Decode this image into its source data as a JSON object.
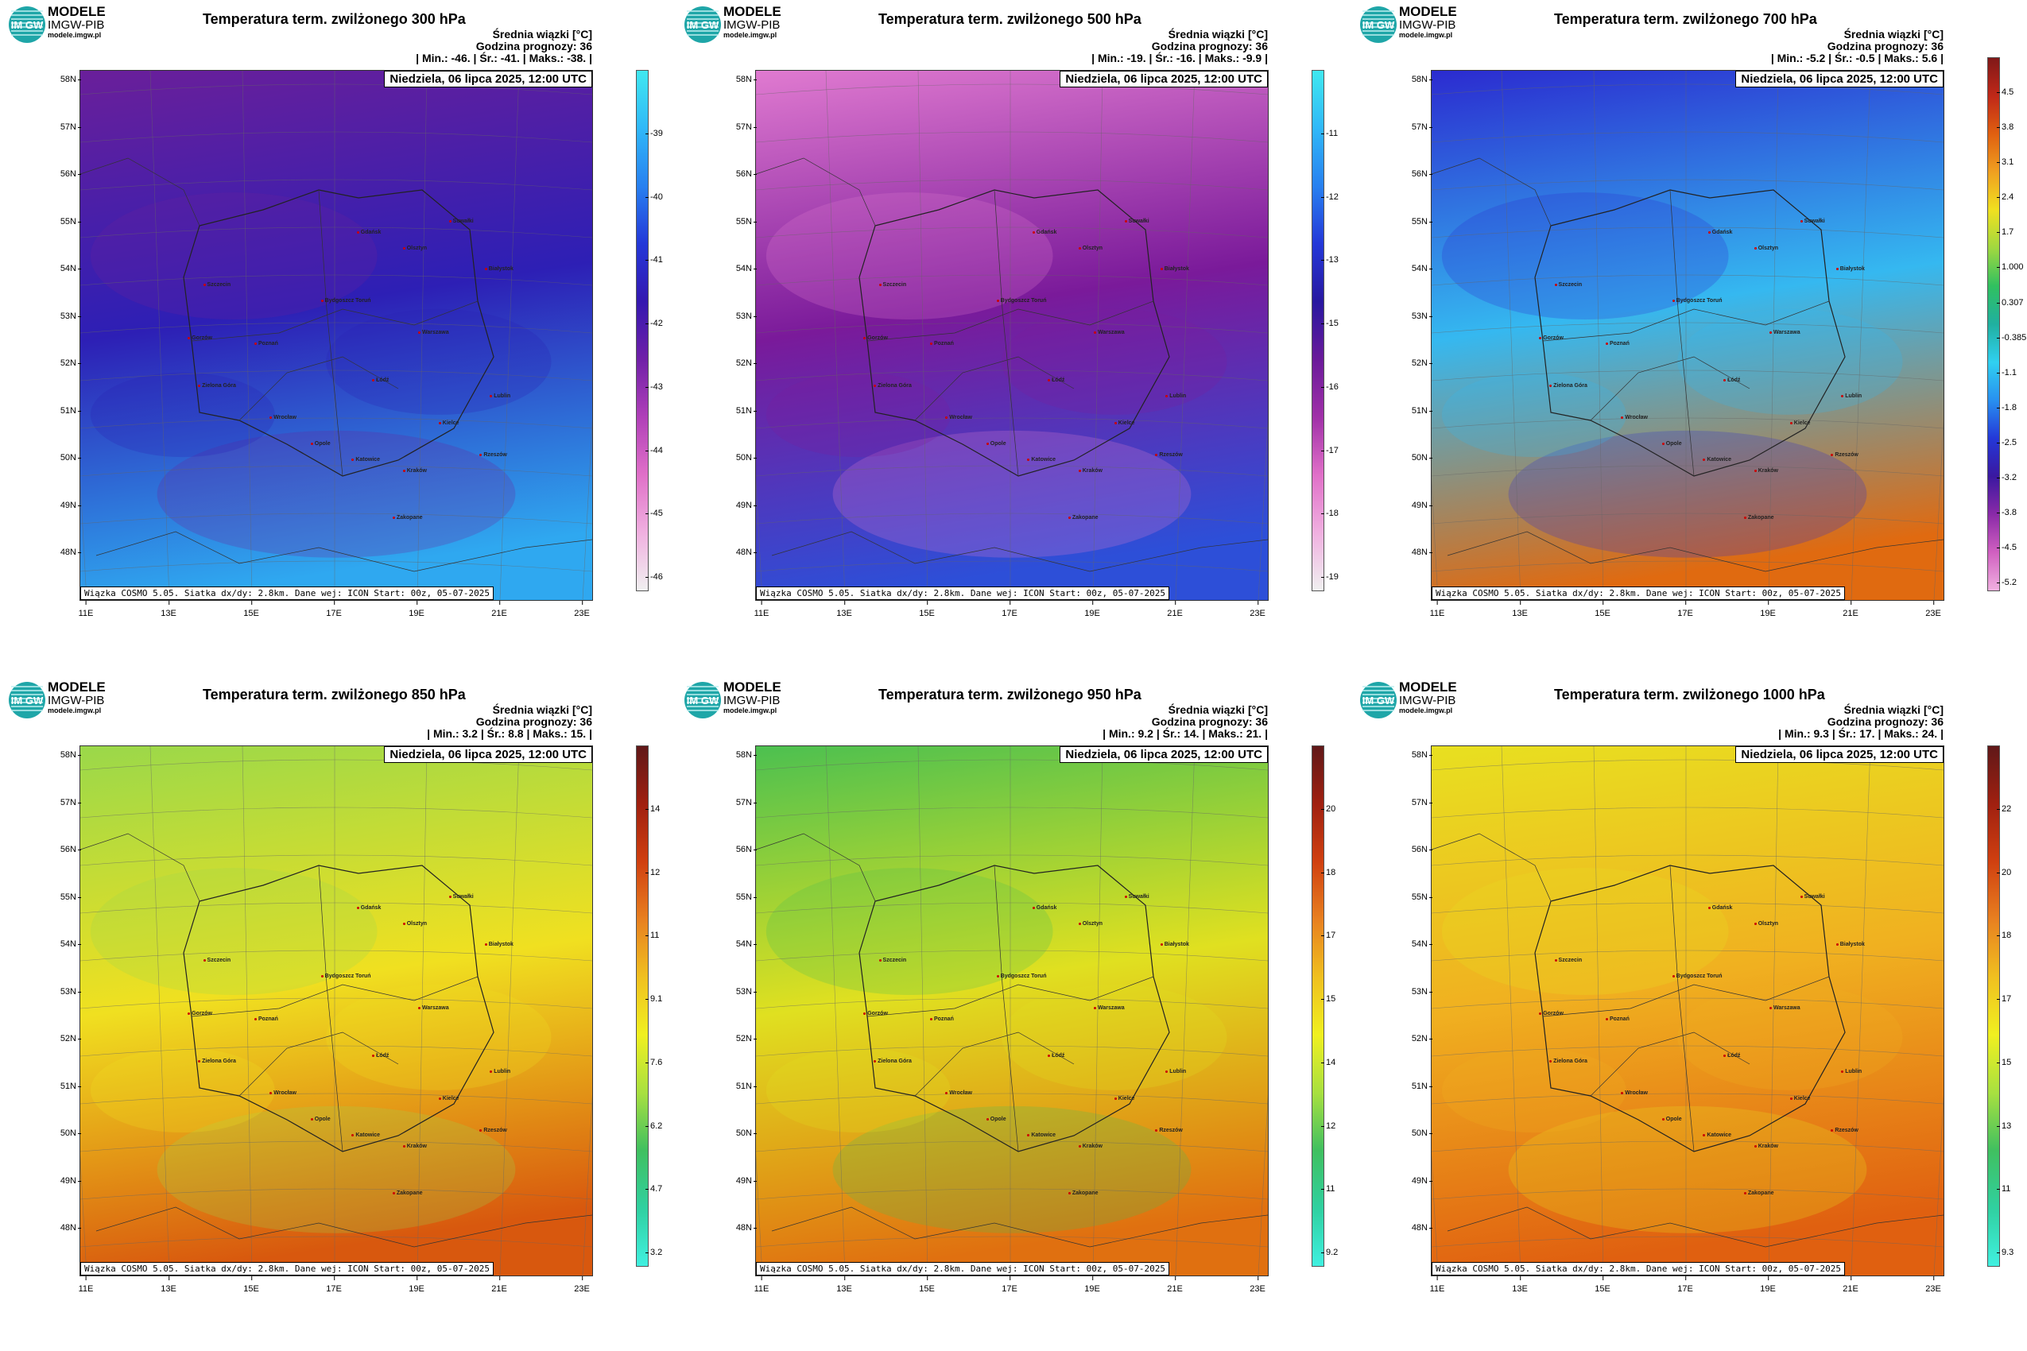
{
  "logo": {
    "badge": "IM GW",
    "line1": "MODELE",
    "line2": "IMGW-PIB",
    "line3": "modele.imgw.pl"
  },
  "common": {
    "info_line1": "Średnia wiązki [°C]",
    "info_line2": "Godzina prognozy: 36",
    "date": "Niedziela, 06 lipca 2025, 12:00 UTC",
    "footer": "Wiązka COSMO 5.05. Siatka dx/dy: 2.8km. Dane wej: ICON Start: 00z, 05-07-2025",
    "lat_labels": [
      "58N",
      "57N",
      "56N",
      "55N",
      "54N",
      "53N",
      "52N",
      "51N",
      "50N",
      "49N",
      "48N"
    ],
    "lon_labels": [
      "11E",
      "13E",
      "15E",
      "17E",
      "19E",
      "21E",
      "23E"
    ],
    "cities": [
      "Gdańsk",
      "Olsztyn",
      "Suwałki",
      "Białystok",
      "Szczecin",
      "Bydgoszcz Toruń",
      "Gorzów",
      "Poznań",
      "Warszawa",
      "Zielona Góra",
      "Łódź",
      "Lublin",
      "Wrocław",
      "Kielce",
      "Opole",
      "Katowice",
      "Kraków",
      "Rzeszów",
      "Zakopane"
    ]
  },
  "panels": [
    {
      "title": "Temperatura term. zwilżonego 300 hPa",
      "stats": "| Min.:     -46. | Śr.:     -41. | Maks.:    -38. |",
      "palette": "cold300",
      "cbar_ticks": [
        "-39",
        "-40",
        "-41",
        "-42",
        "-43",
        "-44",
        "-45",
        "-46"
      ],
      "colors": {
        "top": "#6a1f9a",
        "mid": "#2d1fb5",
        "bottom": "#2fa8f0"
      }
    },
    {
      "title": "Temperatura term. zwilżonego 500 hPa",
      "stats": "| Min.:     -19. | Śr.:     -16. | Maks.:    -9.9 |",
      "palette": "cold500",
      "cbar_ticks": [
        "-11",
        "-12",
        "-13",
        "-15",
        "-16",
        "-17",
        "-18",
        "-19"
      ],
      "colors": {
        "top": "#e07ad0",
        "mid": "#7a1a9a",
        "bottom": "#2d4fd8"
      }
    },
    {
      "title": "Temperatura term. zwilżonego 700 hPa",
      "stats": "| Min.:     -5.2 | Śr.:     -0.5 | Maks.:     5.6 |",
      "palette": "mix700",
      "cbar_ticks": [
        "4.5",
        "3.8",
        "3.1",
        "2.4",
        "1.7",
        "1.000",
        "0.307",
        "-0.385",
        "-1.1",
        "-1.8",
        "-2.5",
        "-3.2",
        "-3.8",
        "-4.5",
        "-5.2"
      ],
      "colors": {
        "top": "#2b2bd0",
        "mid": "#35b8f0",
        "bottom": "#e06a10"
      }
    },
    {
      "title": "Temperatura term. zwilżonego 850 hPa",
      "stats": "| Min.:      3.2 | Śr.:      8.8 | Maks.:     15. |",
      "palette": "warm850",
      "cbar_ticks": [
        "14",
        "12",
        "11",
        "9.1",
        "7.6",
        "6.2",
        "4.7",
        "3.2"
      ],
      "colors": {
        "top": "#9ad84a",
        "mid": "#f0e020",
        "bottom": "#d8580e"
      }
    },
    {
      "title": "Temperatura term. zwilżonego 950 hPa",
      "stats": "| Min.:      9.2 | Śr.:      14. | Maks.:     21. |",
      "palette": "warm950",
      "cbar_ticks": [
        "20",
        "18",
        "17",
        "15",
        "14",
        "12",
        "11",
        "9.2"
      ],
      "colors": {
        "top": "#4cc050",
        "mid": "#e0e020",
        "bottom": "#e07010"
      }
    },
    {
      "title": "Temperatura term. zwilżonego 1000 hPa",
      "stats": "| Min.:      9.3 | Śr.:      17. | Maks.:     24. |",
      "palette": "warm1000",
      "cbar_ticks": [
        "22",
        "20",
        "18",
        "17",
        "15",
        "13",
        "11",
        "9.3"
      ],
      "colors": {
        "top": "#e8e020",
        "mid": "#f0b020",
        "bottom": "#e06010"
      }
    }
  ]
}
